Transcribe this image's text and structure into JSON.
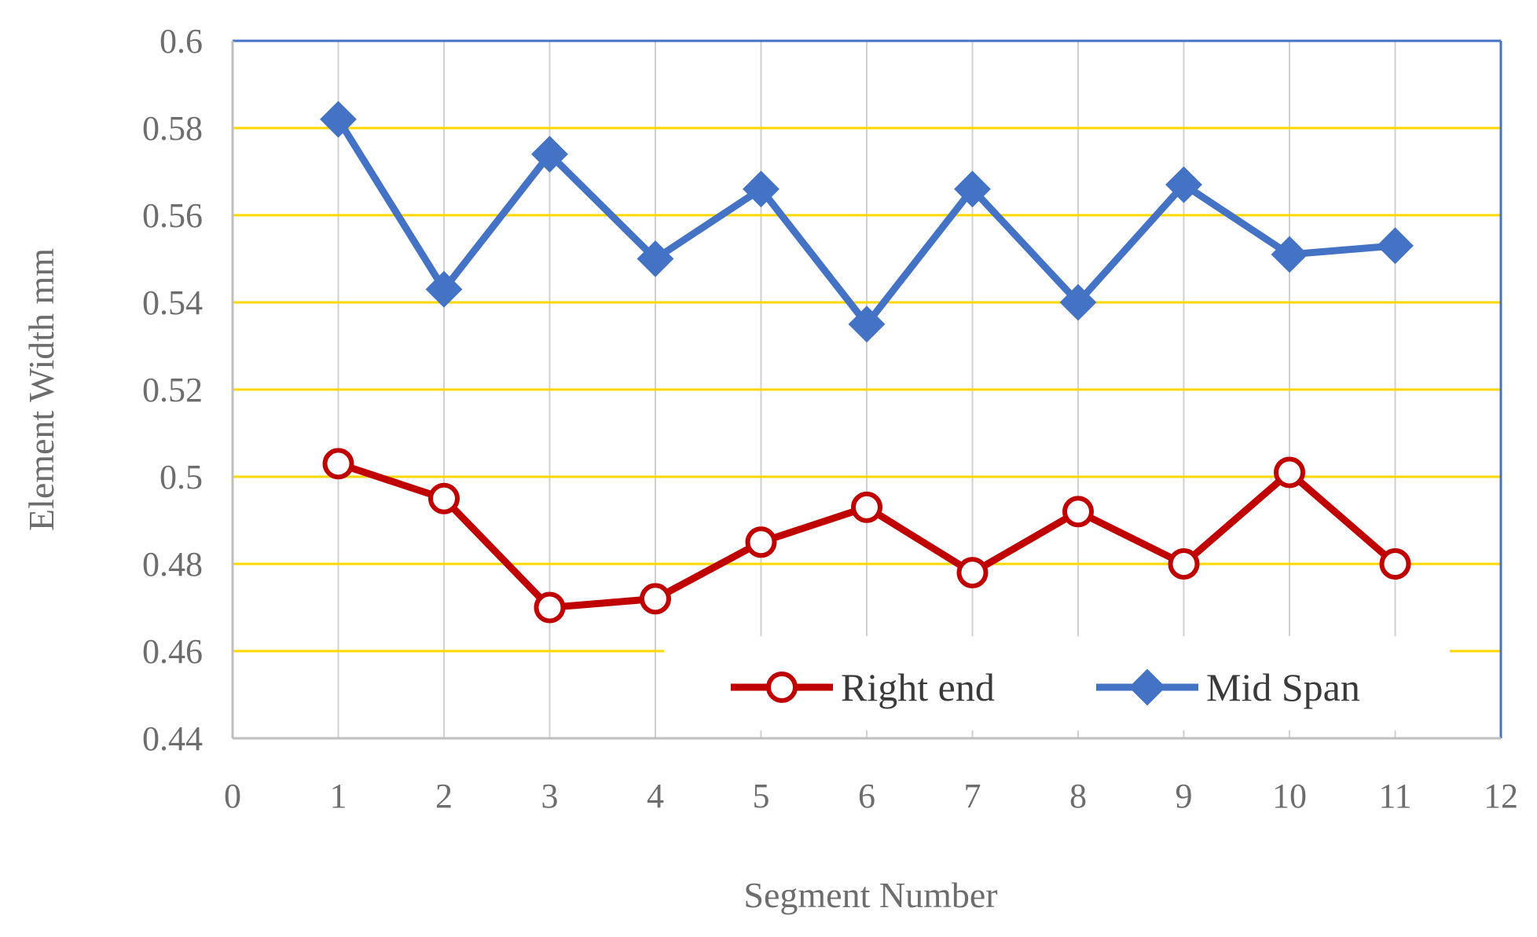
{
  "chart_data": {
    "type": "line",
    "title": "",
    "xlabel": "Segment Number",
    "ylabel": "Element Width mm",
    "xlim": [
      0,
      12
    ],
    "ylim": [
      0.44,
      0.6
    ],
    "x_ticks": [
      "0",
      "1",
      "2",
      "3",
      "4",
      "5",
      "6",
      "7",
      "8",
      "9",
      "10",
      "11",
      "12"
    ],
    "y_ticks": [
      "0.44",
      "0.46",
      "0.48",
      "0.5",
      "0.52",
      "0.54",
      "0.56",
      "0.58",
      "0.6"
    ],
    "x": [
      1,
      2,
      3,
      4,
      5,
      6,
      7,
      8,
      9,
      10,
      11
    ],
    "series": [
      {
        "name": "Right end",
        "marker": "open-circle",
        "color": "#c00000",
        "values": [
          0.503,
          0.495,
          0.47,
          0.472,
          0.485,
          0.493,
          0.478,
          0.492,
          0.48,
          0.501,
          0.48
        ]
      },
      {
        "name": "Mid Span",
        "marker": "diamond",
        "color": "#4472c4",
        "values": [
          0.582,
          0.543,
          0.574,
          0.55,
          0.566,
          0.535,
          0.566,
          0.54,
          0.567,
          0.551,
          0.553
        ]
      }
    ],
    "grid": true,
    "horizontal_grid_color": "#ffd700",
    "vertical_grid_color": "#d0d0d0",
    "plot_border_color": "#4472c4",
    "legend_position": "bottom-right inside plot"
  }
}
